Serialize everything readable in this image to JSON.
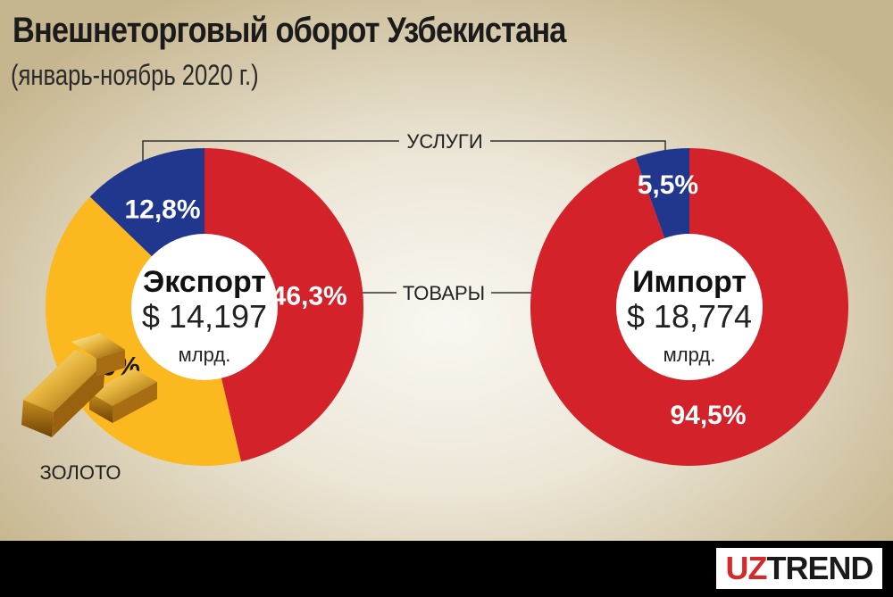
{
  "header": {
    "title": "Внешнеторговый оборот Узбекистана",
    "subtitle": "(январь-ноябрь 2020 г.)"
  },
  "callouts": {
    "services": "УСЛУГИ",
    "goods": "ТОВАРЫ",
    "gold": "ЗОЛОТО"
  },
  "brand": {
    "part1": "UZ",
    "part2": "TREND"
  },
  "colors": {
    "goods": "#d3222a",
    "gold": "#fbb81f",
    "services": "#21378e",
    "gold_label": "#1a1a1a",
    "slice_label": "#ffffff"
  },
  "chart_data": [
    {
      "type": "pie",
      "title": "Экспорт",
      "total": "$ 14,197",
      "unit": "млрд.",
      "slices": [
        {
          "label": "46,3%",
          "value": 46.3,
          "category": "ТОВАРЫ",
          "color": "#d3222a"
        },
        {
          "label": "40,9%",
          "value": 40.9,
          "category": "ЗОЛОТО",
          "color": "#fbb81f"
        },
        {
          "label": "12,8%",
          "value": 12.8,
          "category": "УСЛУГИ",
          "color": "#21378e"
        }
      ]
    },
    {
      "type": "pie",
      "title": "Импорт",
      "total": "$ 18,774",
      "unit": "млрд.",
      "slices": [
        {
          "label": "94,5%",
          "value": 94.5,
          "category": "ТОВАРЫ",
          "color": "#d3222a"
        },
        {
          "label": "5,5%",
          "value": 5.5,
          "category": "УСЛУГИ",
          "color": "#21378e"
        }
      ]
    }
  ]
}
